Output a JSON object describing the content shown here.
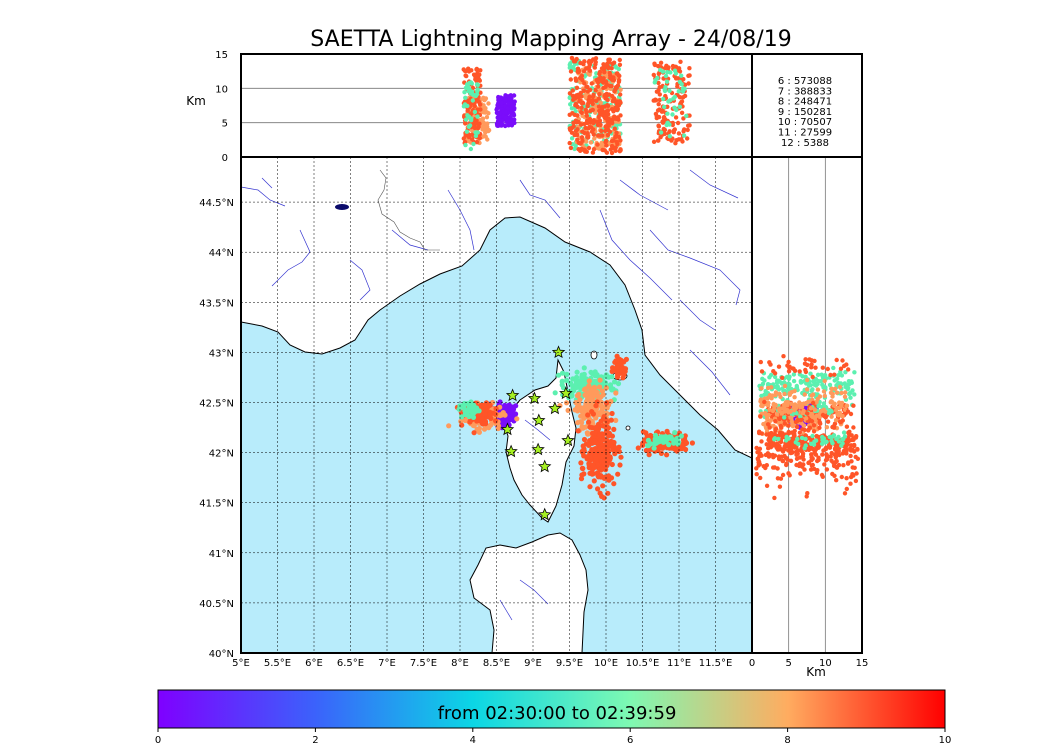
{
  "chart_data": {
    "type": "scatter",
    "title": "SAETTA Lightning Mapping Array - 24/08/19",
    "colors": {
      "sea": "#b8ecfb",
      "counts_highlight": "#ff0000",
      "violet": "#7a0dfa",
      "teal": "#5cf0b0",
      "orange": "#ff5528",
      "peach": "#ff9a5c",
      "star": "#a6f022",
      "rivers": "#3535d0"
    },
    "map": {
      "xlim": [
        5.0,
        12.0
      ],
      "ylim": [
        40.0,
        44.95
      ],
      "x_ticks": [
        "5°E",
        "5.5°E",
        "6°E",
        "6.5°E",
        "7°E",
        "7.5°E",
        "8°E",
        "8.5°E",
        "9°E",
        "9.5°E",
        "10°E",
        "10.5°E",
        "11°E",
        "11.5°E"
      ],
      "y_ticks": [
        "40°N",
        "40.5°N",
        "41°N",
        "41.5°N",
        "42°N",
        "42.5°N",
        "43°N",
        "43.5°N",
        "44°N",
        "44.5°N"
      ]
    },
    "altitude_panel": {
      "ylabel": "Km",
      "ylim": [
        0,
        15
      ],
      "y_ticks": [
        "0",
        "5",
        "10",
        "15"
      ]
    },
    "side_panel": {
      "xlabel": "Km",
      "xlim": [
        0,
        15
      ],
      "x_ticks": [
        "0",
        "5",
        "10",
        "15"
      ]
    },
    "counts": [
      {
        "label": "6  :  573088"
      },
      {
        "label": "7  :  388833",
        "highlight": true
      },
      {
        "label": "8  :  248471"
      },
      {
        "label": "9  :  150281"
      },
      {
        "label": "10  :   70507"
      },
      {
        "label": "11  :   27599"
      },
      {
        "label": "12  :    5388"
      }
    ],
    "colorbar": {
      "label": "from 02:30:00 to 02:39:59",
      "range": [
        0,
        10
      ],
      "ticks": [
        "0",
        "2",
        "4",
        "6",
        "8",
        "10"
      ]
    },
    "stations": [
      {
        "lon": 9.35,
        "lat": 43.0
      },
      {
        "lon": 8.72,
        "lat": 42.57
      },
      {
        "lon": 9.02,
        "lat": 42.54
      },
      {
        "lon": 9.45,
        "lat": 42.59
      },
      {
        "lon": 9.3,
        "lat": 42.44
      },
      {
        "lon": 9.08,
        "lat": 42.32
      },
      {
        "lon": 8.65,
        "lat": 42.23
      },
      {
        "lon": 9.48,
        "lat": 42.12
      },
      {
        "lon": 8.7,
        "lat": 42.01
      },
      {
        "lon": 9.07,
        "lat": 42.03
      },
      {
        "lon": 9.16,
        "lat": 41.86
      },
      {
        "lon": 9.16,
        "lat": 41.38
      }
    ],
    "clusters": [
      {
        "name": "violet-west",
        "lon": 8.6,
        "lat": 42.38,
        "slon": 0.08,
        "slat": 0.05,
        "color": "#7a0dfa",
        "n": 160,
        "alt": [
          4.5,
          9
        ],
        "altx_lon": [
          8.5,
          8.75
        ]
      },
      {
        "name": "peach-west",
        "lon": 8.32,
        "lat": 42.36,
        "slon": 0.14,
        "slat": 0.06,
        "color": "#ff9a5c",
        "n": 120,
        "alt": [
          2,
          9
        ],
        "altx_lon": [
          8.1,
          8.4
        ]
      },
      {
        "name": "orange-west",
        "lon": 8.25,
        "lat": 42.4,
        "slon": 0.1,
        "slat": 0.05,
        "color": "#ff5528",
        "n": 120,
        "alt": [
          2,
          13
        ],
        "altx_lon": [
          8.05,
          8.28
        ]
      },
      {
        "name": "teal-west",
        "lon": 8.15,
        "lat": 42.42,
        "slon": 0.09,
        "slat": 0.04,
        "color": "#5cf0b0",
        "n": 40,
        "alt": [
          1,
          11
        ],
        "altx_lon": [
          8.05,
          8.25
        ]
      },
      {
        "name": "teal-cape",
        "lon": 9.75,
        "lat": 42.68,
        "slon": 0.18,
        "slat": 0.07,
        "color": "#5cf0b0",
        "n": 150,
        "alt": [
          1,
          14
        ],
        "altx_lon": [
          9.5,
          10.2
        ]
      },
      {
        "name": "peach-east",
        "lon": 9.82,
        "lat": 42.45,
        "slon": 0.12,
        "slat": 0.12,
        "color": "#ff9a5c",
        "n": 160,
        "alt": [
          1,
          13
        ],
        "altx_lon": [
          9.6,
          10.2
        ]
      },
      {
        "name": "orange-east",
        "lon": 9.92,
        "lat": 42.0,
        "slon": 0.1,
        "slat": 0.17,
        "color": "#ff5528",
        "n": 260,
        "alt": [
          0.5,
          14.5
        ],
        "altx_lon": [
          9.5,
          10.2
        ]
      },
      {
        "name": "orange-capraia",
        "lon": 10.18,
        "lat": 42.85,
        "slon": 0.05,
        "slat": 0.04,
        "color": "#ff5528",
        "n": 40,
        "alt": [
          1,
          14
        ],
        "altx_lon": [
          9.6,
          10.15
        ]
      },
      {
        "name": "orange-tuscany",
        "lon": 10.85,
        "lat": 42.1,
        "slon": 0.16,
        "slat": 0.05,
        "color": "#ff5528",
        "n": 150,
        "alt": [
          2,
          14
        ],
        "altx_lon": [
          10.65,
          11.15
        ]
      },
      {
        "name": "teal-tuscany",
        "lon": 10.78,
        "lat": 42.13,
        "slon": 0.12,
        "slat": 0.04,
        "color": "#5cf0b0",
        "n": 40,
        "alt": [
          3,
          13
        ],
        "altx_lon": [
          10.65,
          11.1
        ]
      }
    ]
  }
}
